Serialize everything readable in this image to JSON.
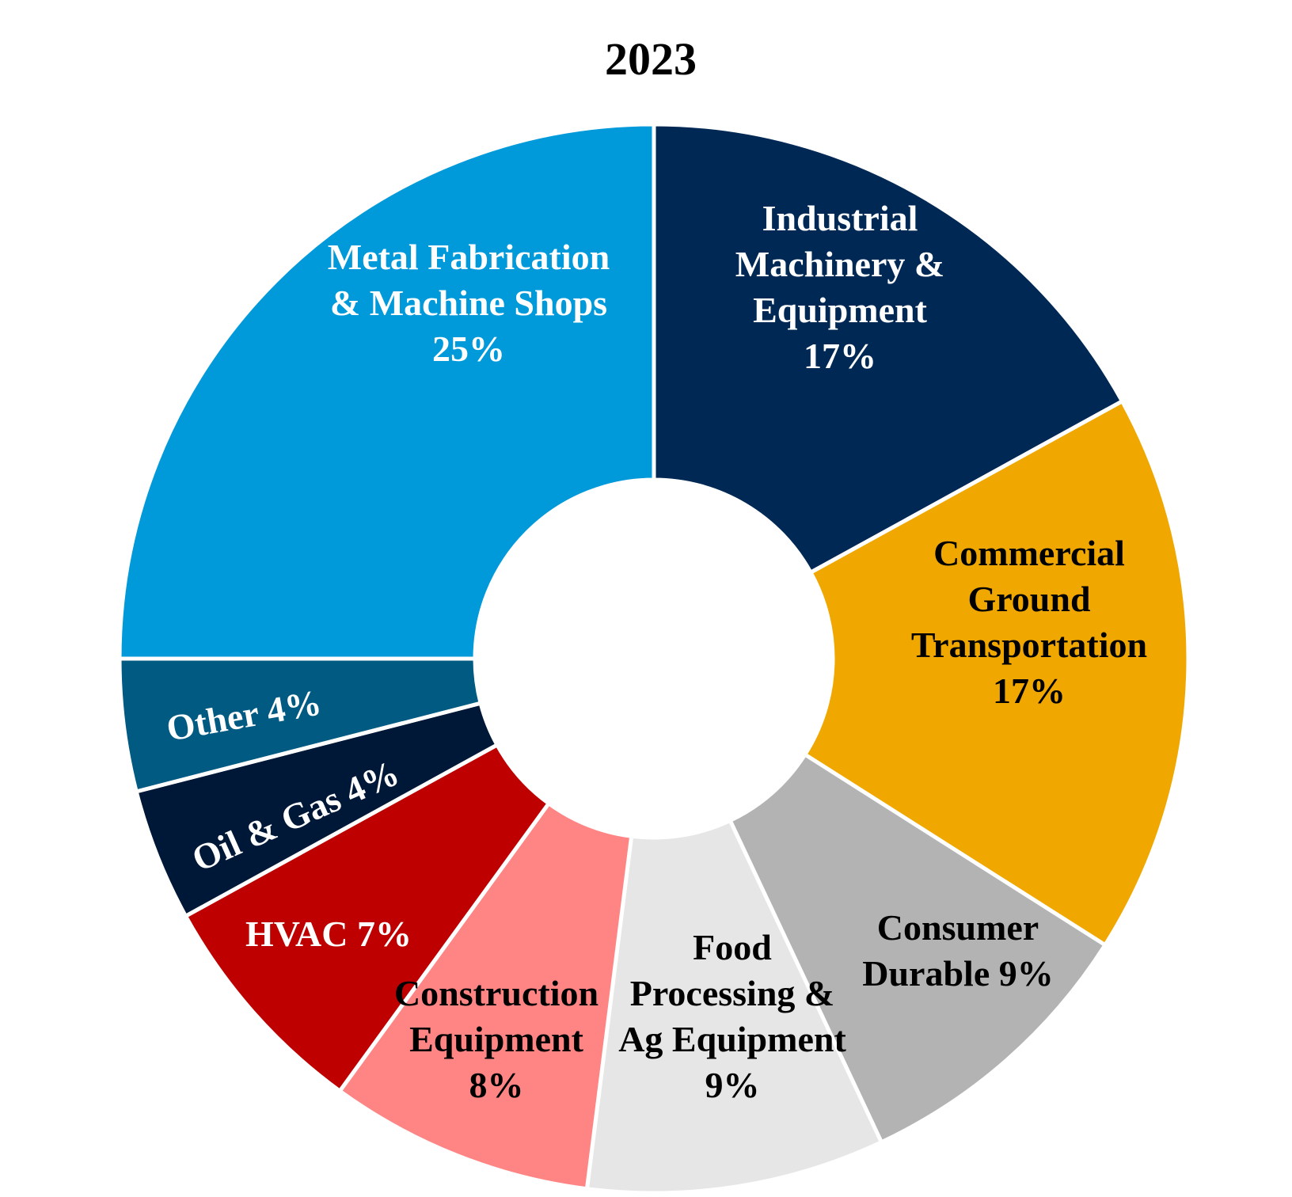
{
  "chart_data": {
    "type": "pie",
    "title": "2023",
    "donut": true,
    "legend": "none",
    "slices": [
      {
        "name": "Industrial Machinery & Equipment",
        "value": 17,
        "color": "#002855",
        "text_color": "#ffffff",
        "label_lines": [
          "Industrial",
          "Machinery &",
          "Equipment",
          "17%"
        ]
      },
      {
        "name": "Commercial Ground Transportation",
        "value": 17,
        "color": "#F0A800",
        "text_color": "#000000",
        "label_lines": [
          "Commercial",
          "Ground",
          "Transportation",
          "17%"
        ]
      },
      {
        "name": "Consumer Durable",
        "value": 9,
        "color": "#B2B3B2",
        "text_color": "#000000",
        "label_lines": [
          "Consumer",
          "Durable 9%"
        ]
      },
      {
        "name": "Food Processing & Ag Equipment",
        "value": 9,
        "color": "#E6E6E6",
        "text_color": "#000000",
        "label_lines": [
          "Food",
          "Processing &",
          "Ag Equipment",
          "9%"
        ]
      },
      {
        "name": "Construction Equipment",
        "value": 8,
        "color": "#FF8585",
        "text_color": "#000000",
        "label_lines": [
          "Construction",
          "Equipment",
          "8%"
        ]
      },
      {
        "name": "HVAC",
        "value": 7,
        "color": "#BE0000",
        "text_color": "#ffffff",
        "label_lines": [
          "HVAC 7%"
        ]
      },
      {
        "name": "Oil & Gas",
        "value": 4,
        "color": "#001838",
        "text_color": "#ffffff",
        "label_lines": [
          "Oil & Gas 4%"
        ]
      },
      {
        "name": "Other",
        "value": 4,
        "color": "#005A82",
        "text_color": "#ffffff",
        "label_lines": [
          "Other 4%"
        ]
      },
      {
        "name": "Metal Fabrication & Machine Shops",
        "value": 25,
        "color": "#009ADB",
        "text_color": "#ffffff",
        "label_lines": [
          "Metal Fabrication",
          "& Machine Shops",
          "25%"
        ]
      }
    ]
  }
}
